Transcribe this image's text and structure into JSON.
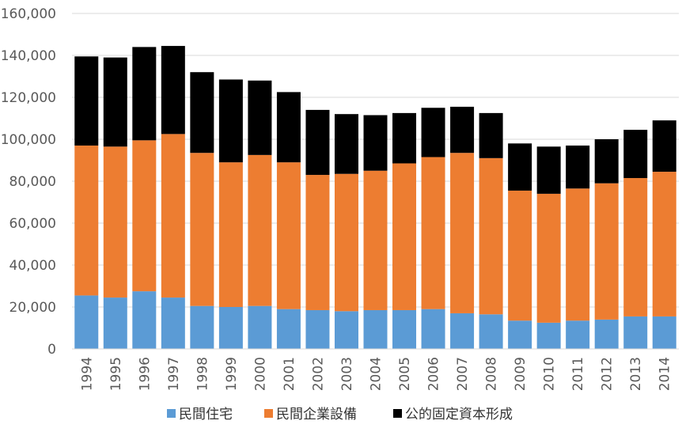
{
  "chart_data": {
    "type": "bar",
    "stacked": true,
    "categories": [
      "1994",
      "1995",
      "1996",
      "1997",
      "1998",
      "1999",
      "2000",
      "2001",
      "2002",
      "2003",
      "2004",
      "2005",
      "2006",
      "2007",
      "2008",
      "2009",
      "2010",
      "2011",
      "2012",
      "2013",
      "2014"
    ],
    "series": [
      {
        "name": "民間住宅",
        "color": "#5b9bd5",
        "values": [
          25500,
          24500,
          27500,
          24500,
          20500,
          20000,
          20500,
          19000,
          18500,
          18000,
          18500,
          18500,
          19000,
          17000,
          16500,
          13500,
          12500,
          13500,
          14000,
          15500,
          15500
        ]
      },
      {
        "name": "民間企業設備",
        "color": "#ed7d31",
        "values": [
          71500,
          72000,
          72000,
          78000,
          73000,
          69000,
          72000,
          70000,
          64500,
          65500,
          66500,
          70000,
          72500,
          76500,
          74500,
          62000,
          61500,
          63000,
          65000,
          66000,
          69000
        ]
      },
      {
        "name": "公的固定資本形成",
        "color": "#000000",
        "values": [
          42500,
          42500,
          44500,
          42000,
          38500,
          39500,
          35500,
          33500,
          31000,
          28500,
          26500,
          24000,
          23500,
          22000,
          21500,
          22500,
          22500,
          20500,
          21000,
          23000,
          24500
        ]
      }
    ],
    "ylim": [
      0,
      160000
    ],
    "yticks": [
      "0",
      "20,000",
      "40,000",
      "60,000",
      "80,000",
      "100,000",
      "120,000",
      "140,000",
      "160,000"
    ],
    "ytick_values": [
      0,
      20000,
      40000,
      60000,
      80000,
      100000,
      120000,
      140000,
      160000
    ],
    "grid": true,
    "legend_position": "bottom"
  }
}
